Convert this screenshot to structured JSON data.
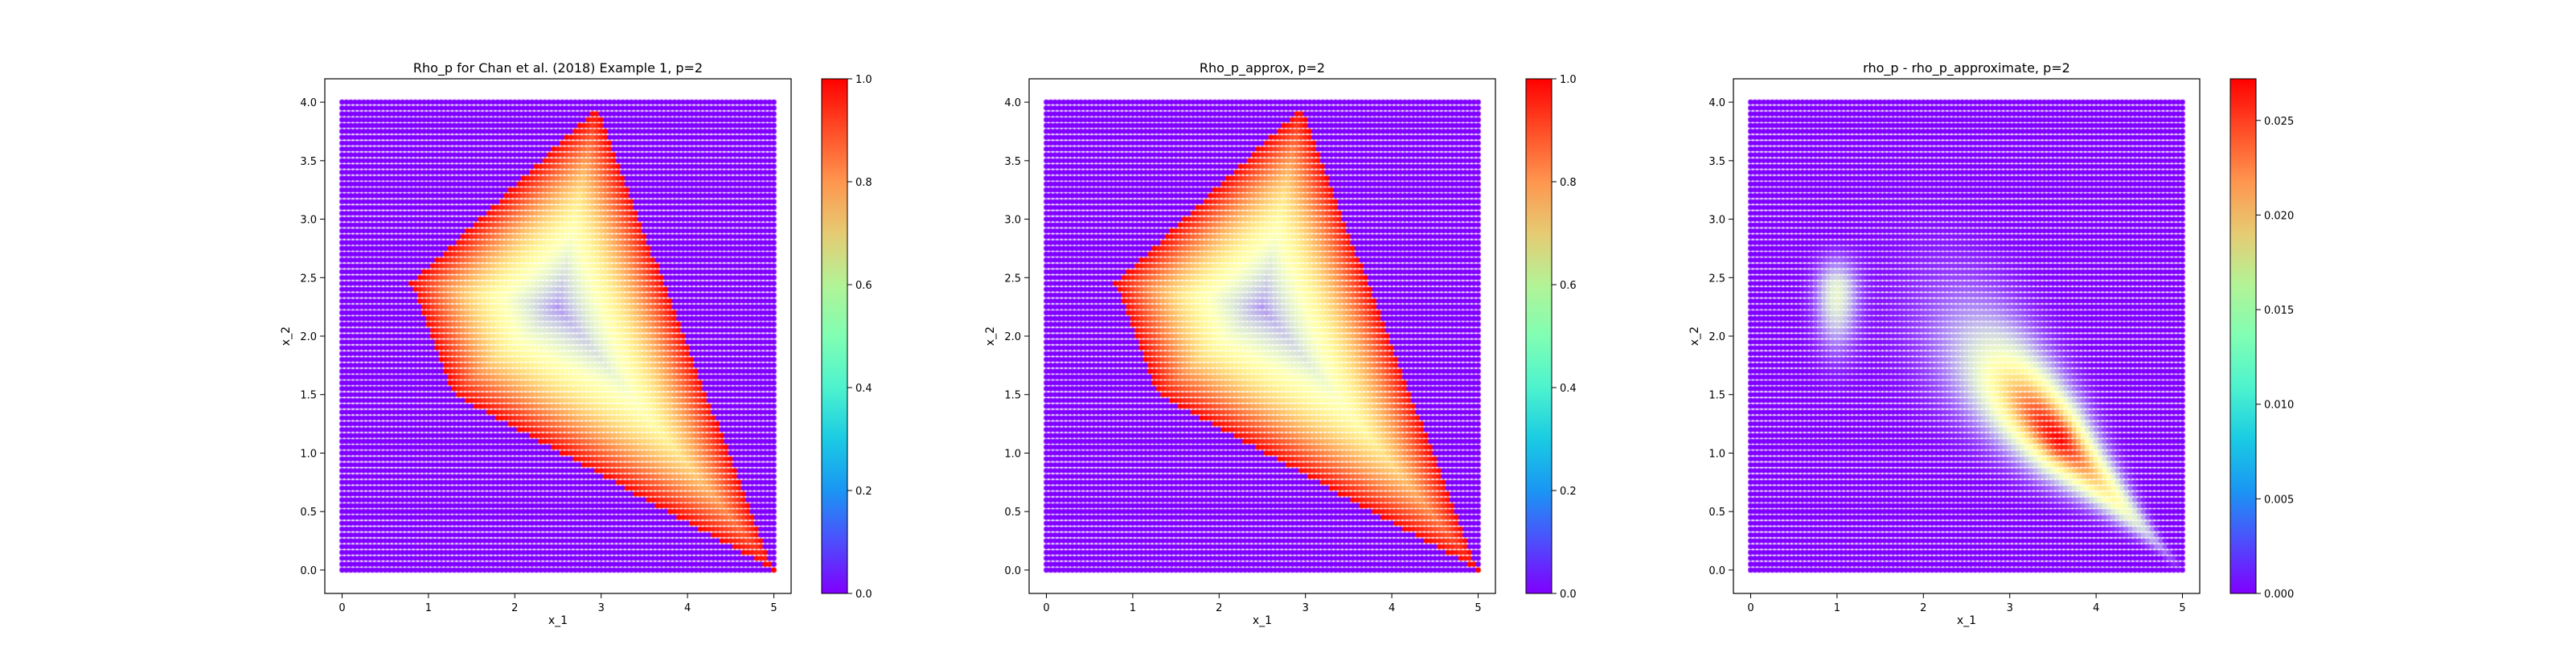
{
  "chart_data": [
    {
      "type": "heatmap",
      "title": "Rho_p for Chan et al. (2018) Example 1, p=2",
      "xlabel": "x_1",
      "ylabel": "x_2",
      "xlim": [
        -0.2,
        5.2
      ],
      "ylim": [
        -0.2,
        4.2
      ],
      "xticks": [
        "0",
        "1",
        "2",
        "3",
        "4",
        "5"
      ],
      "yticks": [
        "0.0",
        "0.5",
        "1.0",
        "1.5",
        "2.0",
        "2.5",
        "3.0",
        "3.5",
        "4.0"
      ],
      "grid_x": [
        0,
        5
      ],
      "grid_y": [
        0,
        4
      ],
      "colormap": "rainbow",
      "colorbar": {
        "range": [
          0,
          1
        ],
        "ticks": [
          "0.0",
          "0.2",
          "0.4",
          "0.6",
          "0.8",
          "1.0"
        ]
      },
      "region_vertices": [
        [
          0.8,
          2.45
        ],
        [
          2.95,
          3.95
        ],
        [
          5.0,
          0.0
        ],
        [
          1.3,
          1.5
        ]
      ],
      "region_center": [
        2.5,
        2.25
      ],
      "value_center": 0.2,
      "value_edge": 1.0,
      "value_outside": 0.0
    },
    {
      "type": "heatmap",
      "title": "Rho_p_approx, p=2",
      "xlabel": "x_1",
      "ylabel": "x_2",
      "xlim": [
        -0.2,
        5.2
      ],
      "ylim": [
        -0.2,
        4.2
      ],
      "xticks": [
        "0",
        "1",
        "2",
        "3",
        "4",
        "5"
      ],
      "yticks": [
        "0.0",
        "0.5",
        "1.0",
        "1.5",
        "2.0",
        "2.5",
        "3.0",
        "3.5",
        "4.0"
      ],
      "grid_x": [
        0,
        5
      ],
      "grid_y": [
        0,
        4
      ],
      "colormap": "rainbow",
      "colorbar": {
        "range": [
          0,
          1
        ],
        "ticks": [
          "0.0",
          "0.2",
          "0.4",
          "0.6",
          "0.8",
          "1.0"
        ]
      },
      "region_vertices": [
        [
          0.8,
          2.45
        ],
        [
          2.95,
          3.95
        ],
        [
          5.0,
          0.0
        ],
        [
          1.3,
          1.5
        ]
      ],
      "region_center": [
        2.5,
        2.25
      ],
      "value_center": 0.2,
      "value_edge": 1.0,
      "value_outside": 0.0
    },
    {
      "type": "heatmap",
      "title": "rho_p - rho_p_approximate, p=2",
      "xlabel": "x_1",
      "ylabel": "x_2",
      "xlim": [
        -0.2,
        5.2
      ],
      "ylim": [
        -0.2,
        4.2
      ],
      "xticks": [
        "0",
        "1",
        "2",
        "3",
        "4",
        "5"
      ],
      "yticks": [
        "0.0",
        "0.5",
        "1.0",
        "1.5",
        "2.0",
        "2.5",
        "3.0",
        "3.5",
        "4.0"
      ],
      "grid_x": [
        0,
        5
      ],
      "grid_y": [
        0,
        4
      ],
      "colormap": "rainbow",
      "colorbar": {
        "range": [
          0,
          0.0272
        ],
        "ticks": [
          "0.000",
          "0.005",
          "0.010",
          "0.015",
          "0.020",
          "0.025"
        ]
      },
      "blobs": [
        {
          "x": 1.0,
          "y": 2.35,
          "peak": 0.011,
          "spread": [
            0.16,
            0.3
          ],
          "clip_upper": true
        },
        {
          "x": 3.6,
          "y": 1.1,
          "peak": 0.027,
          "spread": [
            0.3,
            0.22
          ],
          "elongated_to": [
            5.0,
            0.0
          ]
        }
      ],
      "value_outside": 0.0
    }
  ]
}
